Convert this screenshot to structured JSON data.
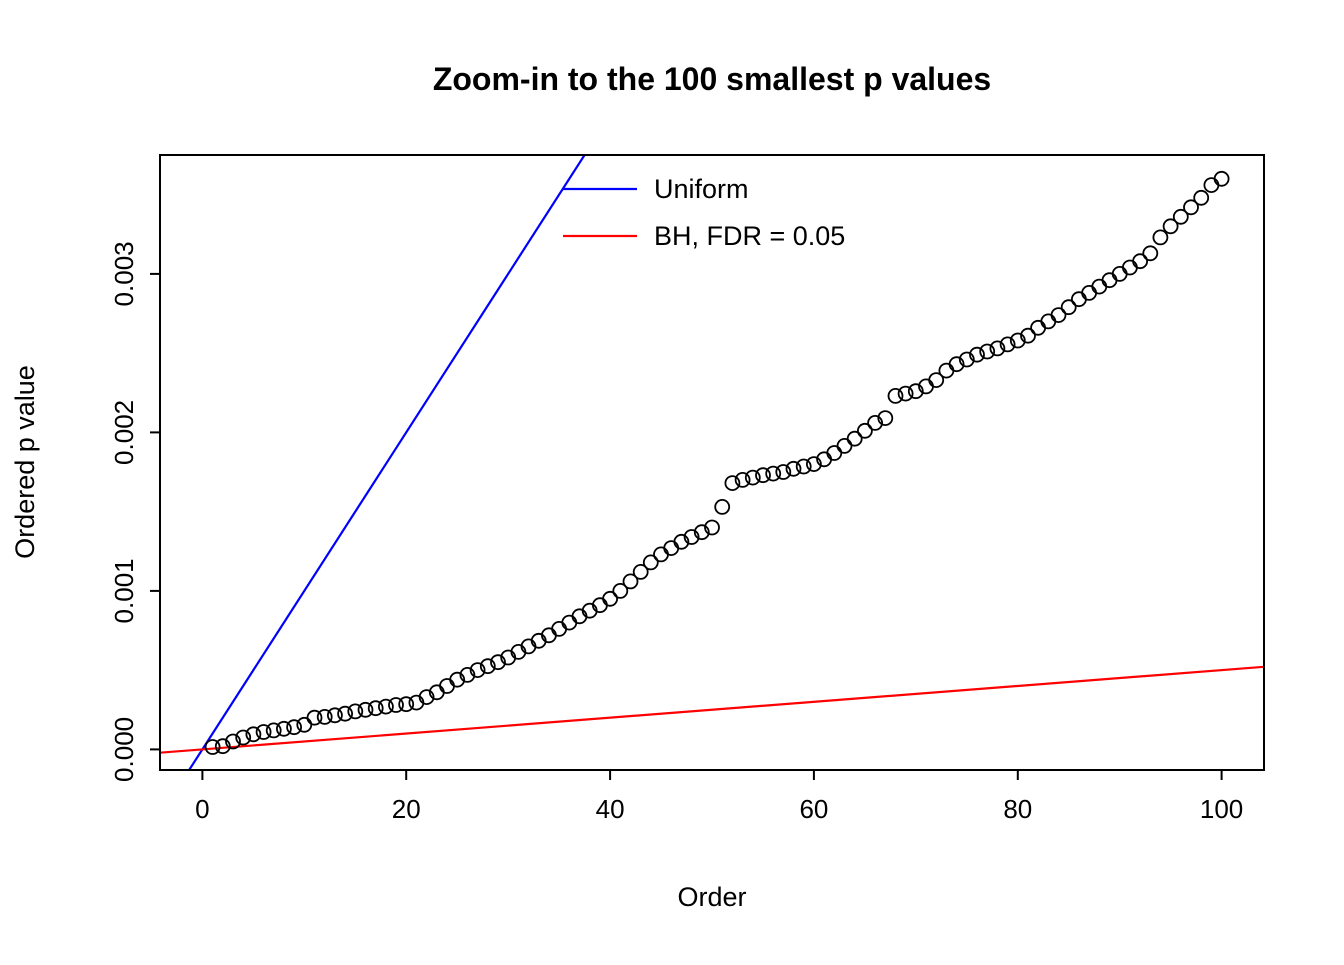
{
  "chart_data": {
    "type": "scatter",
    "title": "Zoom-in to the 100 smallest p values",
    "xlabel": "Order",
    "ylabel": "Ordered p value",
    "xlim": [
      -4.16,
      104.16
    ],
    "ylim": [
      -0.00013,
      0.00375
    ],
    "x_ticks": [
      0,
      20,
      40,
      60,
      80,
      100
    ],
    "x_tick_labels": [
      "0",
      "20",
      "40",
      "60",
      "80",
      "100"
    ],
    "y_ticks": [
      0,
      0.001,
      0.002,
      0.003
    ],
    "y_tick_labels": [
      "0.000",
      "0.001",
      "0.002",
      "0.003"
    ],
    "grid": false,
    "legend_position": "top-center-inside",
    "marker": {
      "shape": "open-circle",
      "color": "#000000"
    },
    "points": {
      "x": [
        1,
        2,
        3,
        4,
        5,
        6,
        7,
        8,
        9,
        10,
        11,
        12,
        13,
        14,
        15,
        16,
        17,
        18,
        19,
        20,
        21,
        22,
        23,
        24,
        25,
        26,
        27,
        28,
        29,
        30,
        31,
        32,
        33,
        34,
        35,
        36,
        37,
        38,
        39,
        40,
        41,
        42,
        43,
        44,
        45,
        46,
        47,
        48,
        49,
        50,
        51,
        52,
        53,
        54,
        55,
        56,
        57,
        58,
        59,
        60,
        61,
        62,
        63,
        64,
        65,
        66,
        67,
        68,
        69,
        70,
        71,
        72,
        73,
        74,
        75,
        76,
        77,
        78,
        79,
        80,
        81,
        82,
        83,
        84,
        85,
        86,
        87,
        88,
        89,
        90,
        91,
        92,
        93,
        94,
        95,
        96,
        97,
        98,
        99,
        100
      ],
      "y": [
        1.5e-05,
        2e-05,
        5e-05,
        7.5e-05,
        9.5e-05,
        0.00011,
        0.00012,
        0.00013,
        0.00014,
        0.000155,
        0.0002,
        0.000205,
        0.000215,
        0.000225,
        0.00024,
        0.00025,
        0.00026,
        0.00027,
        0.00028,
        0.000285,
        0.000295,
        0.00033,
        0.00036,
        0.0004,
        0.00044,
        0.00047,
        0.0005,
        0.000525,
        0.00055,
        0.00058,
        0.000615,
        0.00065,
        0.000685,
        0.00072,
        0.00076,
        0.0008,
        0.00084,
        0.000875,
        0.00091,
        0.00095,
        0.001,
        0.00106,
        0.00112,
        0.00118,
        0.00123,
        0.00127,
        0.00131,
        0.00134,
        0.00137,
        0.0014,
        0.00153,
        0.00168,
        0.0017,
        0.001715,
        0.00173,
        0.00174,
        0.00175,
        0.00177,
        0.001785,
        0.0018,
        0.00183,
        0.00187,
        0.001915,
        0.00196,
        0.00201,
        0.00206,
        0.00209,
        0.00223,
        0.002245,
        0.00226,
        0.00229,
        0.00233,
        0.00239,
        0.00243,
        0.00246,
        0.00249,
        0.00251,
        0.00253,
        0.002555,
        0.00258,
        0.00261,
        0.00266,
        0.0027,
        0.00274,
        0.00279,
        0.00284,
        0.00288,
        0.00292,
        0.00296,
        0.003,
        0.00304,
        0.00308,
        0.00313,
        0.00323,
        0.0033,
        0.00336,
        0.00342,
        0.00348,
        0.00356,
        0.0036
      ]
    },
    "lines": [
      {
        "name": "Uniform",
        "color": "#0000FF",
        "slope": 0.0001,
        "intercept": 0
      },
      {
        "name": "BH, FDR = 0.05",
        "color": "#FF0000",
        "slope": 5e-06,
        "intercept": 0
      }
    ],
    "legend": [
      {
        "label": "Uniform",
        "color": "#0000FF"
      },
      {
        "label": "BH, FDR = 0.05",
        "color": "#FF0000"
      }
    ]
  }
}
